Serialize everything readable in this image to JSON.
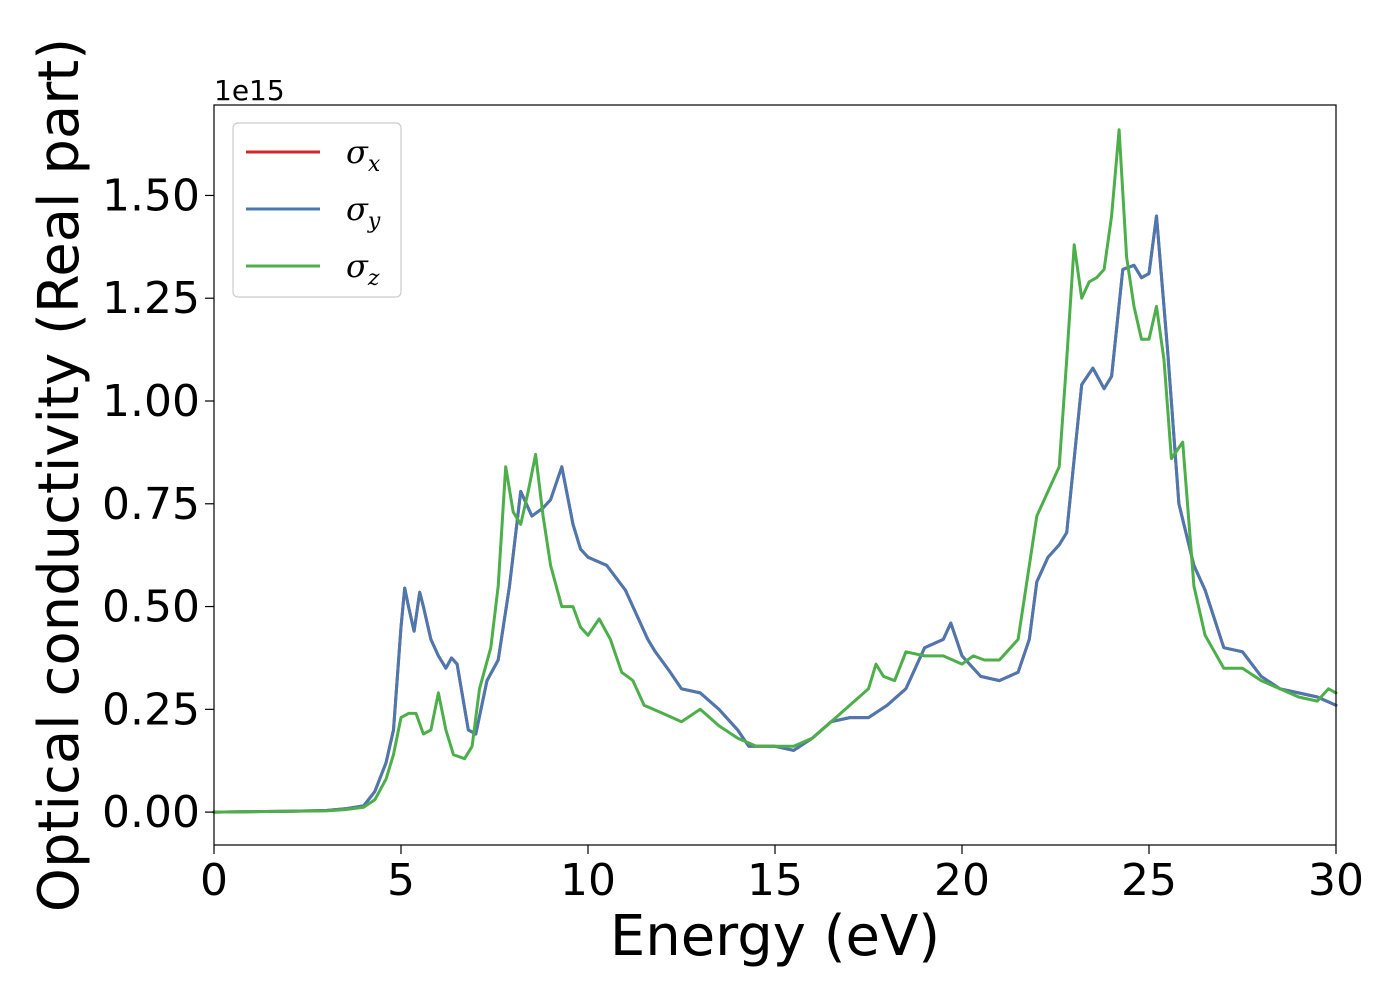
{
  "chart_data": {
    "type": "line",
    "xlabel": "Energy (eV)",
    "ylabel": "Optical conductivity (Real part)",
    "y_offset_text": "1e15",
    "xlim": [
      0,
      30
    ],
    "ylim": [
      -0.08,
      1.72
    ],
    "x_ticks": [
      0,
      5,
      10,
      15,
      20,
      25,
      30
    ],
    "x_tick_labels": [
      "0",
      "5",
      "10",
      "15",
      "20",
      "25",
      "30"
    ],
    "y_ticks": [
      0.0,
      0.25,
      0.5,
      0.75,
      1.0,
      1.25,
      1.5
    ],
    "y_tick_labels": [
      "0.00",
      "0.25",
      "0.50",
      "0.75",
      "1.00",
      "1.25",
      "1.50"
    ],
    "grid": false,
    "legend_position": "top-left",
    "series": [
      {
        "name": "σx",
        "legend_symbol": "σ",
        "legend_sub": "x",
        "color": "#d62728",
        "x": [
          0,
          2,
          3,
          3.5,
          4,
          4.3,
          4.6,
          4.8,
          5.0,
          5.1,
          5.2,
          5.35,
          5.5,
          5.6,
          5.8,
          6.0,
          6.2,
          6.35,
          6.5,
          6.8,
          7.0,
          7.3,
          7.6,
          7.9,
          8.2,
          8.5,
          8.8,
          9.0,
          9.3,
          9.6,
          9.8,
          10.0,
          10.5,
          11.0,
          11.3,
          11.6,
          11.8,
          12.2,
          12.5,
          13.0,
          13.5,
          14.0,
          14.3,
          15.0,
          15.5,
          16.0,
          16.5,
          17.0,
          17.5,
          18.0,
          18.5,
          19.0,
          19.5,
          19.7,
          20.0,
          20.5,
          21.0,
          21.5,
          21.8,
          22.0,
          22.3,
          22.6,
          22.8,
          23.0,
          23.2,
          23.5,
          23.8,
          24.0,
          24.3,
          24.6,
          24.8,
          25.0,
          25.2,
          25.5,
          25.8,
          26.2,
          26.5,
          27.0,
          27.5,
          28.0,
          28.5,
          29.0,
          29.5,
          30.0
        ],
        "y": [
          0,
          0.002,
          0.004,
          0.008,
          0.015,
          0.05,
          0.12,
          0.2,
          0.45,
          0.545,
          0.5,
          0.44,
          0.535,
          0.5,
          0.42,
          0.38,
          0.35,
          0.375,
          0.36,
          0.2,
          0.19,
          0.32,
          0.37,
          0.55,
          0.78,
          0.72,
          0.74,
          0.76,
          0.84,
          0.7,
          0.64,
          0.62,
          0.6,
          0.54,
          0.48,
          0.42,
          0.39,
          0.34,
          0.3,
          0.29,
          0.25,
          0.2,
          0.16,
          0.16,
          0.15,
          0.18,
          0.22,
          0.23,
          0.23,
          0.26,
          0.3,
          0.4,
          0.42,
          0.46,
          0.38,
          0.33,
          0.32,
          0.34,
          0.42,
          0.56,
          0.62,
          0.65,
          0.68,
          0.86,
          1.04,
          1.08,
          1.03,
          1.06,
          1.32,
          1.33,
          1.3,
          1.31,
          1.45,
          1.12,
          0.75,
          0.6,
          0.54,
          0.4,
          0.39,
          0.33,
          0.3,
          0.29,
          0.28,
          0.26
        ]
      },
      {
        "name": "σy",
        "legend_symbol": "σ",
        "legend_sub": "y",
        "color": "#4c78b0",
        "x": [
          0,
          2,
          3,
          3.5,
          4,
          4.3,
          4.6,
          4.8,
          5.0,
          5.1,
          5.2,
          5.35,
          5.5,
          5.6,
          5.8,
          6.0,
          6.2,
          6.35,
          6.5,
          6.8,
          7.0,
          7.3,
          7.6,
          7.9,
          8.2,
          8.5,
          8.8,
          9.0,
          9.3,
          9.6,
          9.8,
          10.0,
          10.5,
          11.0,
          11.3,
          11.6,
          11.8,
          12.2,
          12.5,
          13.0,
          13.5,
          14.0,
          14.3,
          15.0,
          15.5,
          16.0,
          16.5,
          17.0,
          17.5,
          18.0,
          18.5,
          19.0,
          19.5,
          19.7,
          20.0,
          20.5,
          21.0,
          21.5,
          21.8,
          22.0,
          22.3,
          22.6,
          22.8,
          23.0,
          23.2,
          23.5,
          23.8,
          24.0,
          24.3,
          24.6,
          24.8,
          25.0,
          25.2,
          25.5,
          25.8,
          26.2,
          26.5,
          27.0,
          27.5,
          28.0,
          28.5,
          29.0,
          29.5,
          30.0
        ],
        "y": [
          0,
          0.002,
          0.004,
          0.008,
          0.015,
          0.05,
          0.12,
          0.2,
          0.45,
          0.545,
          0.5,
          0.44,
          0.535,
          0.5,
          0.42,
          0.38,
          0.35,
          0.375,
          0.36,
          0.2,
          0.19,
          0.32,
          0.37,
          0.55,
          0.78,
          0.72,
          0.74,
          0.76,
          0.84,
          0.7,
          0.64,
          0.62,
          0.6,
          0.54,
          0.48,
          0.42,
          0.39,
          0.34,
          0.3,
          0.29,
          0.25,
          0.2,
          0.16,
          0.16,
          0.15,
          0.18,
          0.22,
          0.23,
          0.23,
          0.26,
          0.3,
          0.4,
          0.42,
          0.46,
          0.38,
          0.33,
          0.32,
          0.34,
          0.42,
          0.56,
          0.62,
          0.65,
          0.68,
          0.86,
          1.04,
          1.08,
          1.03,
          1.06,
          1.32,
          1.33,
          1.3,
          1.31,
          1.45,
          1.12,
          0.75,
          0.6,
          0.54,
          0.4,
          0.39,
          0.33,
          0.3,
          0.29,
          0.28,
          0.26
        ]
      },
      {
        "name": "σz",
        "legend_symbol": "σ",
        "legend_sub": "z",
        "color": "#4daf4a",
        "x": [
          0,
          2,
          3,
          3.5,
          4,
          4.3,
          4.6,
          4.8,
          5.0,
          5.2,
          5.4,
          5.6,
          5.8,
          6.0,
          6.2,
          6.4,
          6.7,
          6.9,
          7.1,
          7.4,
          7.6,
          7.8,
          8.0,
          8.2,
          8.4,
          8.6,
          8.8,
          9.0,
          9.3,
          9.6,
          9.8,
          10.0,
          10.3,
          10.6,
          10.9,
          11.2,
          11.5,
          12.0,
          12.5,
          13.0,
          13.5,
          14.0,
          14.5,
          15.0,
          15.5,
          16.0,
          16.5,
          17.0,
          17.5,
          17.7,
          17.9,
          18.2,
          18.5,
          19.0,
          19.5,
          20.0,
          20.3,
          20.6,
          21.0,
          21.5,
          22.0,
          22.3,
          22.6,
          22.8,
          23.0,
          23.2,
          23.4,
          23.6,
          23.8,
          24.0,
          24.2,
          24.4,
          24.6,
          24.8,
          25.0,
          25.2,
          25.4,
          25.6,
          25.9,
          26.2,
          26.5,
          27.0,
          27.5,
          28.0,
          28.5,
          29.0,
          29.5,
          29.8,
          30.0
        ],
        "y": [
          0,
          0.002,
          0.003,
          0.006,
          0.012,
          0.03,
          0.08,
          0.14,
          0.23,
          0.24,
          0.24,
          0.19,
          0.2,
          0.29,
          0.2,
          0.14,
          0.13,
          0.16,
          0.3,
          0.4,
          0.55,
          0.84,
          0.73,
          0.7,
          0.78,
          0.87,
          0.72,
          0.6,
          0.5,
          0.5,
          0.45,
          0.43,
          0.47,
          0.42,
          0.34,
          0.32,
          0.26,
          0.24,
          0.22,
          0.25,
          0.21,
          0.18,
          0.16,
          0.16,
          0.16,
          0.18,
          0.22,
          0.26,
          0.3,
          0.36,
          0.33,
          0.32,
          0.39,
          0.38,
          0.38,
          0.36,
          0.38,
          0.37,
          0.37,
          0.42,
          0.72,
          0.78,
          0.84,
          1.1,
          1.38,
          1.25,
          1.29,
          1.3,
          1.32,
          1.45,
          1.66,
          1.35,
          1.23,
          1.15,
          1.15,
          1.23,
          1.1,
          0.86,
          0.9,
          0.55,
          0.43,
          0.35,
          0.35,
          0.32,
          0.3,
          0.28,
          0.27,
          0.3,
          0.29
        ]
      }
    ]
  }
}
